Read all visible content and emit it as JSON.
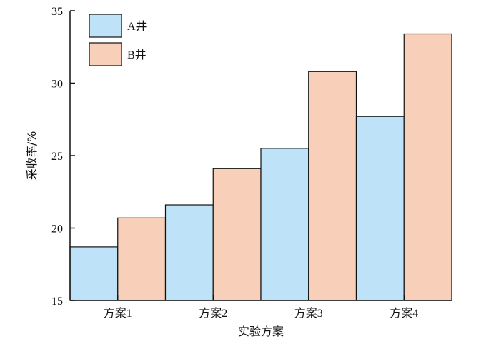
{
  "chart_data": {
    "type": "bar",
    "categories": [
      "方案1",
      "方案2",
      "方案3",
      "方案4"
    ],
    "series": [
      {
        "name": "A井",
        "values": [
          18.7,
          21.6,
          25.5,
          27.7
        ],
        "color": "#bee3f8"
      },
      {
        "name": "B井",
        "values": [
          20.7,
          24.1,
          30.8,
          33.4
        ],
        "color": "#f8cfb9"
      }
    ],
    "xlabel": "实验方案",
    "ylabel": "采收率/%",
    "ylim": [
      15,
      35
    ],
    "yticks": [
      15,
      20,
      25,
      30,
      35
    ],
    "legend_position": "top-left",
    "grid": false
  }
}
